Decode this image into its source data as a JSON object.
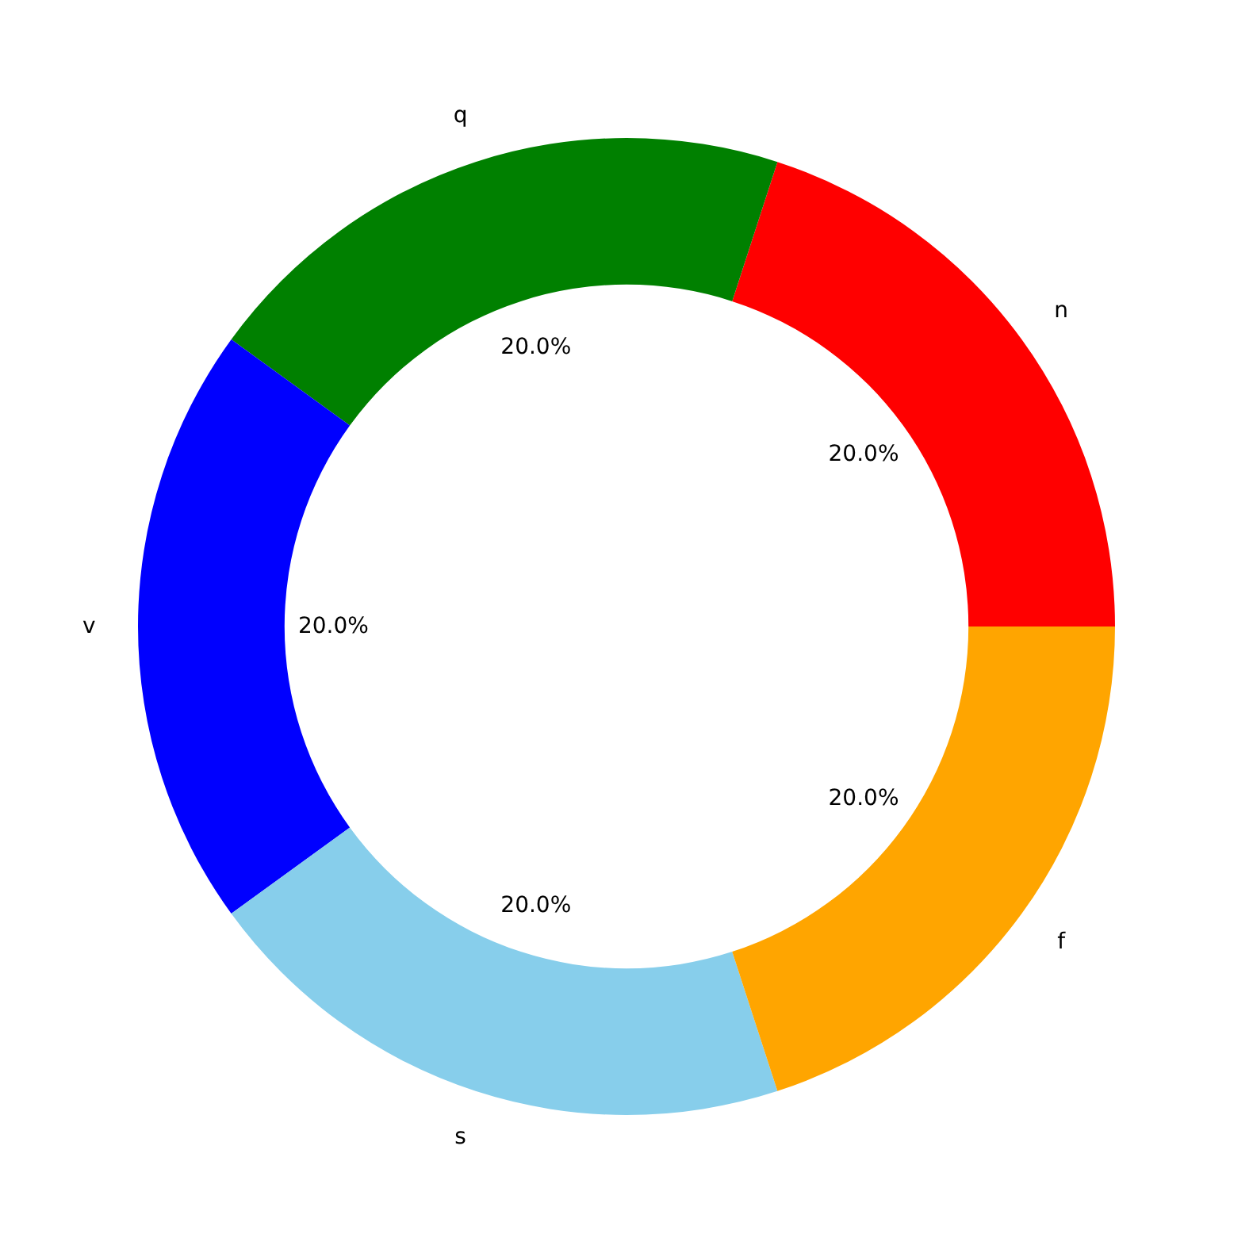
{
  "chart_data": {
    "type": "donut",
    "categories": [
      "n",
      "q",
      "v",
      "s",
      "f"
    ],
    "values": [
      20,
      20,
      20,
      20,
      20
    ],
    "colors": [
      "#ff0000",
      "#008000",
      "#0000ff",
      "#87ceeb",
      "#ffa500"
    ],
    "value_labels": [
      "20.0%",
      "20.0%",
      "20.0%",
      "20.0%",
      "20.0%"
    ]
  }
}
